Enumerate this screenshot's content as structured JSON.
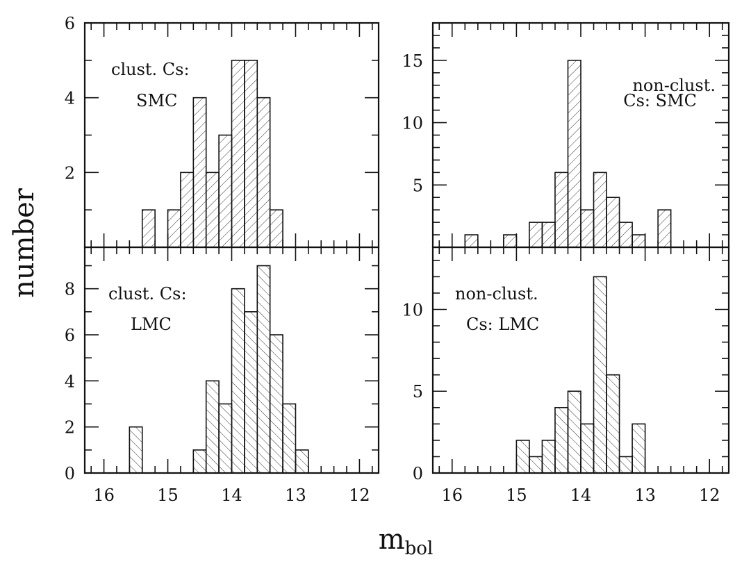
{
  "figure": {
    "ylabel": "number",
    "xlabel_main": "m",
    "xlabel_sub": "bol"
  },
  "chart_data": [
    {
      "type": "bar",
      "panel": "top-left",
      "annotation": [
        "clust. Cs:",
        "SMC"
      ],
      "bin_width": 0.2,
      "x": [
        15.3,
        14.9,
        14.7,
        14.5,
        14.3,
        14.1,
        13.9,
        13.7,
        13.5,
        13.3
      ],
      "values": [
        1,
        1,
        2,
        4,
        2,
        3,
        5,
        5,
        4,
        1
      ],
      "xlim": [
        16.3,
        11.7
      ],
      "ylim": [
        0,
        6
      ],
      "ytick_labels": [
        "2",
        "4",
        "6"
      ],
      "hatch": "forward",
      "xticks_labeled": false
    },
    {
      "type": "bar",
      "panel": "top-right",
      "annotation": [
        "non-clust.",
        "Cs: SMC"
      ],
      "bin_width": 0.2,
      "x": [
        15.7,
        15.1,
        14.7,
        14.5,
        14.3,
        14.1,
        13.9,
        13.7,
        13.5,
        13.3,
        13.1,
        12.7
      ],
      "values": [
        1,
        1,
        2,
        2,
        6,
        15,
        3,
        6,
        4,
        2,
        1,
        3
      ],
      "xlim": [
        16.3,
        11.7
      ],
      "ylim": [
        0,
        18
      ],
      "ytick_labels": [
        "5",
        "10",
        "15"
      ],
      "hatch": "forward",
      "xticks_labeled": false
    },
    {
      "type": "bar",
      "panel": "bottom-left",
      "annotation": [
        "clust. Cs:",
        "LMC"
      ],
      "bin_width": 0.2,
      "x": [
        15.5,
        14.5,
        14.3,
        14.1,
        13.9,
        13.7,
        13.5,
        13.3,
        13.1,
        12.9
      ],
      "values": [
        2,
        1,
        4,
        3,
        8,
        7,
        9,
        6,
        3,
        1
      ],
      "xlim": [
        16.3,
        11.7
      ],
      "ylim": [
        0,
        9.8
      ],
      "ytick_labels": [
        "0",
        "2",
        "4",
        "6",
        "8"
      ],
      "xtick_labels": [
        "16",
        "15",
        "14",
        "13",
        "12"
      ],
      "hatch": "backward",
      "xticks_labeled": true
    },
    {
      "type": "bar",
      "panel": "bottom-right",
      "annotation": [
        "non-clust.",
        "Cs: LMC"
      ],
      "bin_width": 0.2,
      "x": [
        14.9,
        14.7,
        14.5,
        14.3,
        14.1,
        13.9,
        13.7,
        13.5,
        13.3,
        13.1
      ],
      "values": [
        2,
        1,
        2,
        4,
        5,
        3,
        12,
        6,
        1,
        3
      ],
      "xlim": [
        16.3,
        11.7
      ],
      "ylim": [
        0,
        13.8
      ],
      "ytick_labels": [
        "0",
        "5",
        "10"
      ],
      "xtick_labels": [
        "16",
        "15",
        "14",
        "13",
        "12"
      ],
      "hatch": "backward",
      "xticks_labeled": true
    }
  ]
}
